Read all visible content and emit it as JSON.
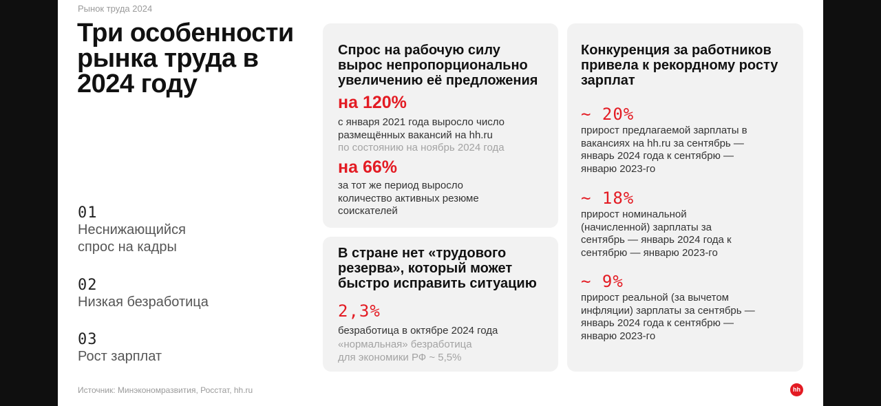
{
  "breadcrumb": "Рынок труда 2024",
  "title": "Три особенности рынка труда в 2024 году",
  "features": [
    {
      "num": "01",
      "label": "Неснижающийся спрос на кадры"
    },
    {
      "num": "02",
      "label": "Низкая безработица"
    },
    {
      "num": "03",
      "label": "Рост зарплат"
    }
  ],
  "source": "Источник: Минэкономразвития, Росстат, hh.ru",
  "card1": {
    "heading": "Спрос на рабочую силу вырос непропорционально увеличению её предложения",
    "stat1_value": "на 120%",
    "stat1_desc": "с января 2021 года выросло число размещённых вакансий на hh.ru",
    "stat1_note": "по состоянию на ноябрь 2024 года",
    "stat2_value": "на 66%",
    "stat2_desc": "за тот же период выросло количество активных резюме соискателей"
  },
  "card2": {
    "heading": "В стране нет «трудового резерва», который может быстро исправить ситуацию",
    "stat_value": "2,3%",
    "stat_desc": "безработица в октябре 2024 года",
    "stat_note": "«нормальная» безработица для экономики РФ ~ 5,5%"
  },
  "card3": {
    "heading": "Конкуренция за работников привела к рекордному росту зарплат",
    "stats": [
      {
        "value": "~ 20%",
        "desc": "прирост предлагаемой зарплаты в вакансиях на hh.ru за сентябрь — январь 2024 года к сентябрю — январю 2023-го"
      },
      {
        "value": "~ 18%",
        "desc": "прирост номинальной (начисленной) зарплаты за сентябрь — январь 2024 года к сентябрю — январю 2023-го"
      },
      {
        "value": "~ 9%",
        "desc": "прирост реальной (за вычетом инфляции) зарплаты за сентябрь — январь 2024 года к сентябрю — январю 2023-го"
      }
    ]
  },
  "logo": "hh",
  "colors": {
    "accent": "#e31b23",
    "card_bg": "#f2f2f2",
    "page_bg": "#0f0f0f"
  }
}
